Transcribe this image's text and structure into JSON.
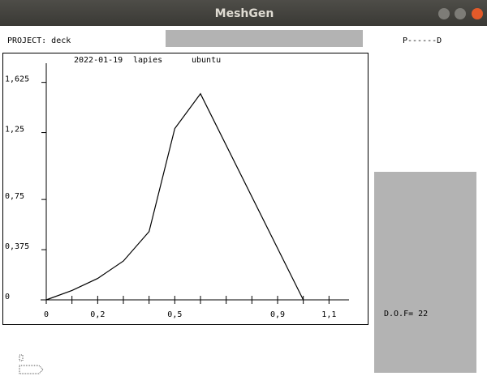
{
  "window": {
    "title": "MeshGen"
  },
  "header": {
    "project": "PROJECT: deck",
    "progress": "P------D"
  },
  "panel": {
    "dof": "D.O.F= 22"
  },
  "chart_data": {
    "type": "line",
    "annotations": [
      "2022-01-19",
      "lapies",
      "ubuntu"
    ],
    "x": [
      0,
      0.1,
      0.2,
      0.3,
      0.4,
      0.5,
      0.6,
      1.0
    ],
    "values": [
      0,
      0.07,
      0.16,
      0.29,
      0.51,
      1.28,
      1.54,
      0
    ],
    "color": "#000000",
    "xlim": [
      0,
      1.2
    ],
    "ylim": [
      0,
      1.75
    ],
    "xticks": [
      0,
      {
        "value": 0.2,
        "label": "0,2"
      },
      {
        "value": 0.5,
        "label": "0,5"
      },
      {
        "value": 0.9,
        "label": "0,9"
      },
      {
        "value": 1.1,
        "label": "1,1"
      }
    ],
    "x_minor_ticks": [
      0.1,
      0.3,
      0.4,
      0.6,
      0.7,
      0.8,
      1.0
    ],
    "yticks": [
      0,
      {
        "value": 0.375,
        "label": "0,375"
      },
      {
        "value": 0.75,
        "label": "0,75"
      },
      {
        "value": 1.25,
        "label": "1,25"
      },
      {
        "value": 1.625,
        "label": "1,625"
      }
    ]
  }
}
